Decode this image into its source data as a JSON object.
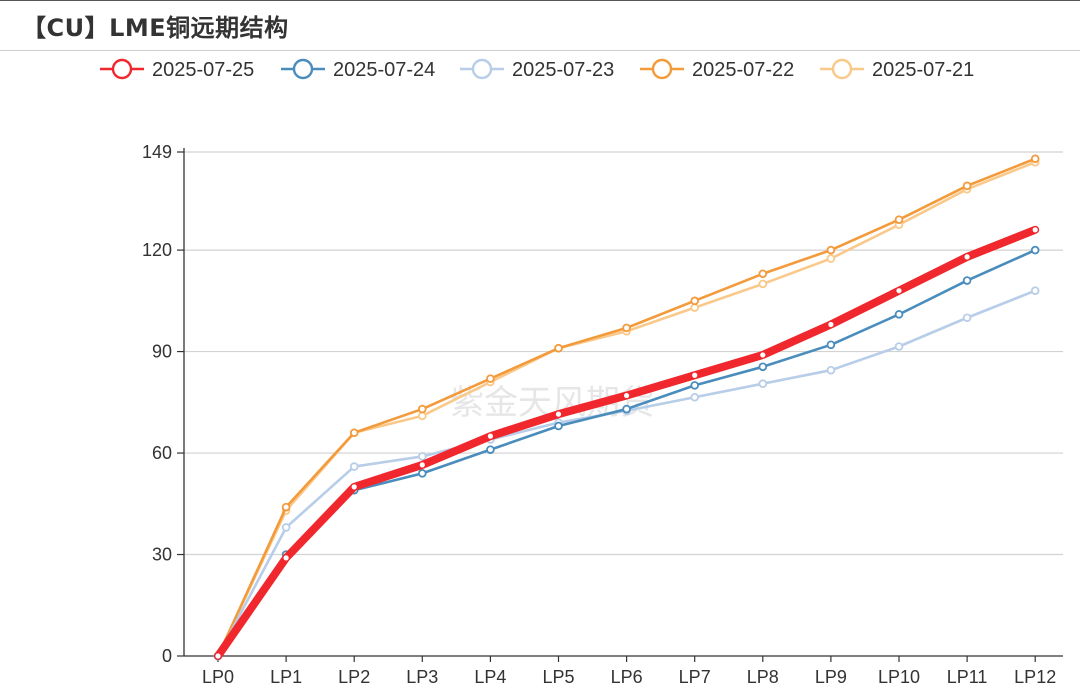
{
  "title": "【CU】LME铜远期结构",
  "watermark": "紫金天风期货",
  "chart_data": {
    "type": "line",
    "categories": [
      "LP0",
      "LP1",
      "LP2",
      "LP3",
      "LP4",
      "LP5",
      "LP6",
      "LP7",
      "LP8",
      "LP9",
      "LP10",
      "LP11",
      "LP12"
    ],
    "ylim": [
      0,
      149
    ],
    "yticks": [
      0,
      30,
      60,
      90,
      120,
      149
    ],
    "grid": true,
    "legend_position": "top-center",
    "series": [
      {
        "name": "2025-07-25",
        "color": "#f0282d",
        "values": [
          0,
          29,
          50,
          56.5,
          65,
          71.5,
          77,
          83,
          89,
          98,
          108,
          118,
          126
        ]
      },
      {
        "name": "2025-07-24",
        "color": "#4a8dbd",
        "values": [
          0,
          30,
          49,
          54,
          61,
          68,
          73,
          80,
          85.5,
          92,
          101,
          111,
          120
        ]
      },
      {
        "name": "2025-07-23",
        "color": "#b7cde8",
        "values": [
          0,
          38,
          56,
          59,
          64,
          69,
          72.5,
          76.5,
          80.5,
          84.5,
          91.5,
          100,
          108
        ]
      },
      {
        "name": "2025-07-22",
        "color": "#f39a3b",
        "values": [
          0,
          44,
          66,
          73,
          82,
          91,
          97,
          105,
          113,
          120,
          129,
          139,
          147
        ]
      },
      {
        "name": "2025-07-21",
        "color": "#fac98a",
        "values": [
          0,
          43,
          66,
          71,
          81,
          91,
          96,
          103,
          110,
          117.5,
          127.5,
          138,
          146
        ]
      }
    ]
  }
}
